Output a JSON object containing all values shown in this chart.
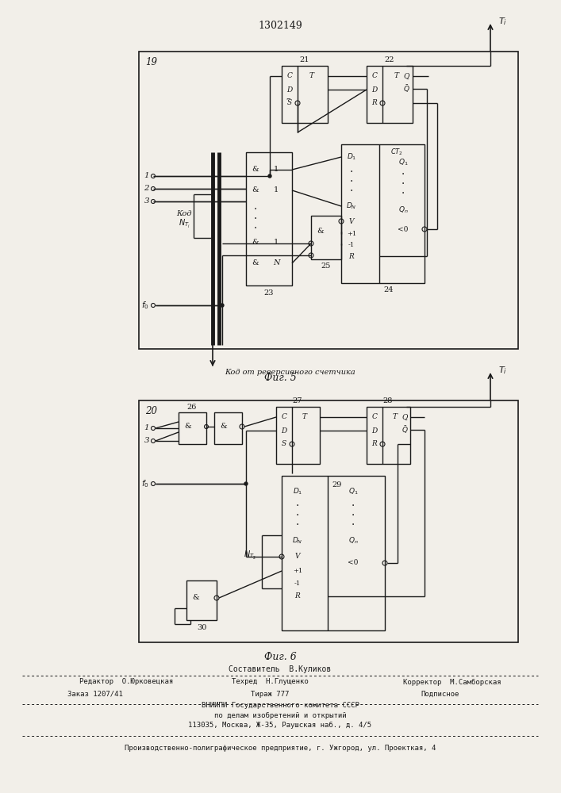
{
  "title": "1302149",
  "fig5_caption": "Фиг. 5",
  "fig6_caption": "Фиг. 6",
  "caption_sub": "Код от реверсивного счетчика",
  "footer_line1": "Составитель  В.Куликов",
  "footer_line2a": "Редактор  О.Юрковецкая",
  "footer_line2b": "Техред  Н.Глущенко",
  "footer_line2c": "Корректор  М.Самборская",
  "footer_line3a": "Заказ 1207/41",
  "footer_line3b": "Тираж 777",
  "footer_line3c": "Подписное",
  "footer_line4": "ВНИИПИ Государственного комитета СССР",
  "footer_line5": "по делам изобретений и открытий",
  "footer_line6": "113035, Москва, Ж-35, Раушская наб., д. 4/5",
  "footer_line7": "Производственно-полиграфическое предприятие, г. Ужгород, ул. Проекткая, 4",
  "bg_color": "#f2efe9",
  "line_color": "#1a1a1a"
}
